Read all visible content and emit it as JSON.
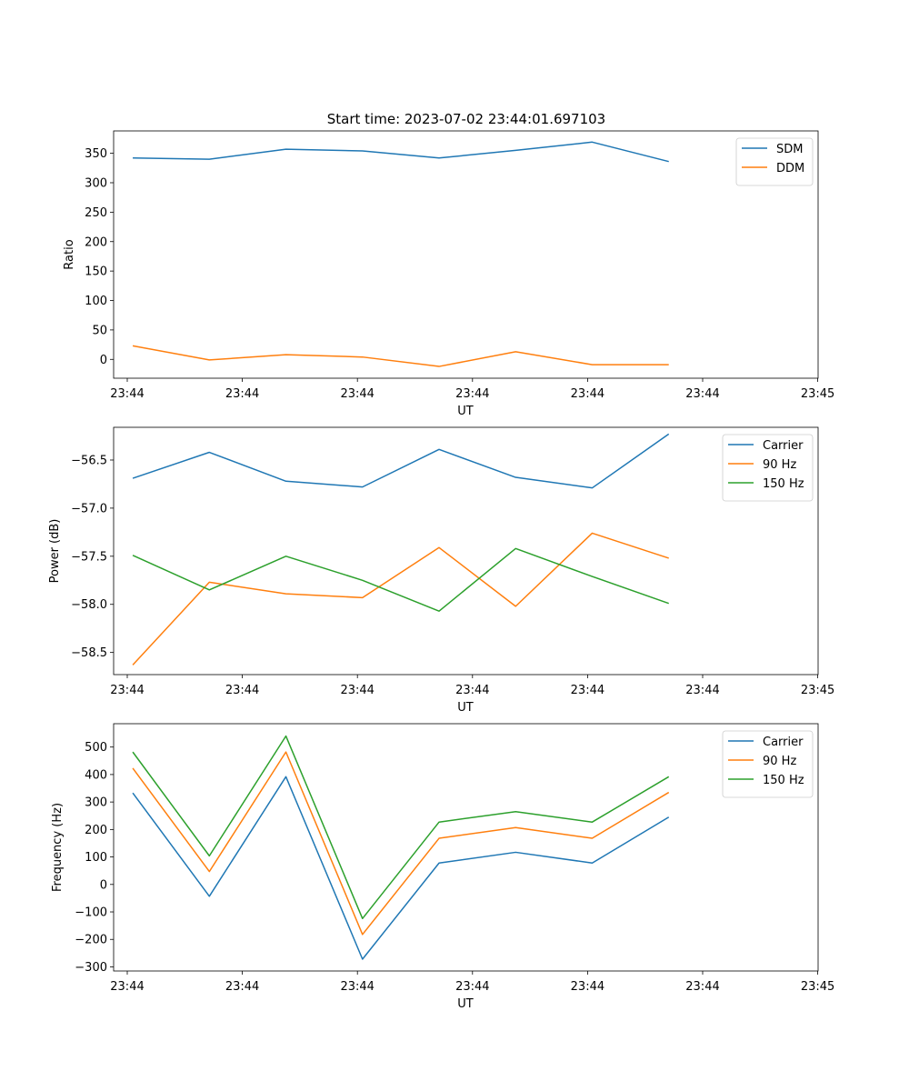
{
  "figure_title": "Start time: 2023-07-02 23:44:01.697103",
  "chart_data": [
    {
      "type": "line",
      "xlabel": "UT",
      "ylabel": "Ratio",
      "x_tick_labels": [
        "23:44",
        "23:44",
        "23:44",
        "23:44",
        "23:44",
        "23:44",
        "23:45"
      ],
      "xlim": [
        -0.25,
        8.95
      ],
      "ylim": [
        -32,
        388
      ],
      "yticks": [
        0,
        50,
        100,
        150,
        200,
        250,
        300,
        350
      ],
      "ytick_labels": [
        "0",
        "50",
        "100",
        "150",
        "200",
        "250",
        "300",
        "350"
      ],
      "x": [
        0,
        1,
        2,
        3,
        4,
        5,
        6,
        7
      ],
      "legend_position": "top-right",
      "series": [
        {
          "name": "SDM",
          "color": "#1f77b4",
          "values": [
            342,
            340,
            357,
            354,
            342,
            355,
            369,
            336
          ]
        },
        {
          "name": "DDM",
          "color": "#ff7f0e",
          "values": [
            23,
            -1,
            8,
            4,
            -12,
            13,
            -9,
            -9
          ]
        }
      ]
    },
    {
      "type": "line",
      "xlabel": "UT",
      "ylabel": "Power (dB)",
      "x_tick_labels": [
        "23:44",
        "23:44",
        "23:44",
        "23:44",
        "23:44",
        "23:44",
        "23:45"
      ],
      "xlim": [
        -0.25,
        8.95
      ],
      "ylim": [
        -58.73,
        -56.16
      ],
      "yticks": [
        -58.5,
        -58.0,
        -57.5,
        -57.0,
        -56.5
      ],
      "ytick_labels": [
        "−58.5",
        "−58.0",
        "−57.5",
        "−57.0",
        "−56.5"
      ],
      "x": [
        0,
        1,
        2,
        3,
        4,
        5,
        6,
        7
      ],
      "legend_position": "top-right",
      "series": [
        {
          "name": "Carrier",
          "color": "#1f77b4",
          "values": [
            -56.69,
            -56.42,
            -56.72,
            -56.78,
            -56.39,
            -56.68,
            -56.79,
            -56.23
          ]
        },
        {
          "name": "90 Hz",
          "color": "#ff7f0e",
          "values": [
            -58.63,
            -57.77,
            -57.89,
            -57.93,
            -57.41,
            -58.02,
            -57.26,
            -57.52
          ]
        },
        {
          "name": "150 Hz",
          "color": "#2ca02c",
          "values": [
            -57.49,
            -57.85,
            -57.5,
            -57.75,
            -58.07,
            -57.42,
            -57.71,
            -57.99
          ]
        }
      ]
    },
    {
      "type": "line",
      "xlabel": "UT",
      "ylabel": "Frequency (Hz)",
      "x_tick_labels": [
        "23:44",
        "23:44",
        "23:44",
        "23:44",
        "23:44",
        "23:44",
        "23:45"
      ],
      "xlim": [
        -0.25,
        8.95
      ],
      "ylim": [
        -315,
        585
      ],
      "yticks": [
        -300,
        -200,
        -100,
        0,
        100,
        200,
        300,
        400,
        500
      ],
      "ytick_labels": [
        "−300",
        "−200",
        "−100",
        "0",
        "100",
        "200",
        "300",
        "400",
        "500"
      ],
      "x": [
        0,
        1,
        2,
        3,
        4,
        5,
        6,
        7
      ],
      "legend_position": "top-right",
      "series": [
        {
          "name": "Carrier",
          "color": "#1f77b4",
          "values": [
            333,
            -43,
            392,
            -272,
            78,
            117,
            78,
            245
          ]
        },
        {
          "name": "90 Hz",
          "color": "#ff7f0e",
          "values": [
            423,
            47,
            482,
            -182,
            168,
            207,
            168,
            335
          ]
        },
        {
          "name": "150 Hz",
          "color": "#2ca02c",
          "values": [
            482,
            104,
            540,
            -124,
            227,
            265,
            227,
            392
          ]
        }
      ]
    }
  ]
}
